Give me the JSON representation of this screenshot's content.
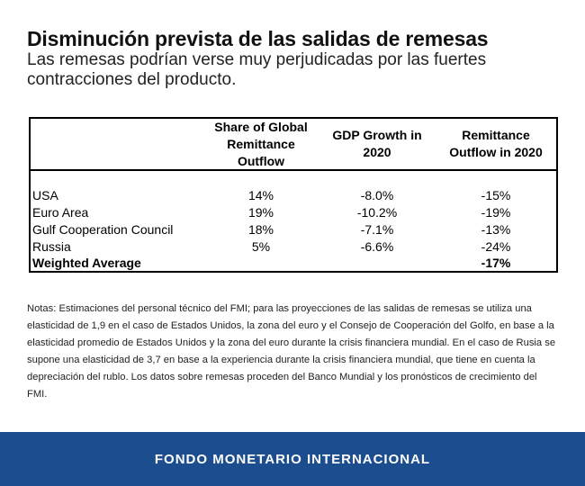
{
  "header": {
    "title": "Disminución prevista de las salidas de remesas",
    "subtitle": "Las remesas podrían verse muy perjudicadas por las fuertes contracciones del producto."
  },
  "table": {
    "columns": [
      {
        "lines": [
          "Share of Global",
          "Remittance",
          "Outflow"
        ]
      },
      {
        "lines": [
          "GDP Growth in",
          "2020"
        ]
      },
      {
        "lines": [
          "Remittance",
          "Outflow in 2020"
        ]
      }
    ],
    "rows": [
      {
        "region": "USA",
        "share": "14%",
        "gdp": "-8.0%",
        "outflow": "-15%"
      },
      {
        "region": "Euro Area",
        "share": "19%",
        "gdp": "-10.2%",
        "outflow": "-19%"
      },
      {
        "region": "Gulf Cooperation Council",
        "share": "18%",
        "gdp": "-7.1%",
        "outflow": "-13%"
      },
      {
        "region": "Russia",
        "share": "5%",
        "gdp": "-6.6%",
        "outflow": "-24%"
      },
      {
        "region": "Weighted Average",
        "share": "",
        "gdp": "",
        "outflow": "-17%"
      }
    ]
  },
  "notes": "Notas: Estimaciones del personal técnico del FMI; para las proyecciones de las salidas de remesas se utiliza una elasticidad de 1,9 en el caso de Estados Unidos, la zona del euro y el Consejo de Cooperación del Golfo, en base a la elasticidad promedio de Estados Unidos y la zona del euro durante la crisis financiera mundial. En el caso de Rusia se supone una elasticidad de 3,7 en base a la experiencia durante la crisis financiera mundial, que tiene en cuenta la depreciación del rublo. Los datos sobre remesas proceden del Banco Mundial y los pronósticos de crecimiento del FMI.",
  "footer": {
    "text": "FONDO MONETARIO INTERNACIONAL",
    "background": "#1c4e8f"
  }
}
